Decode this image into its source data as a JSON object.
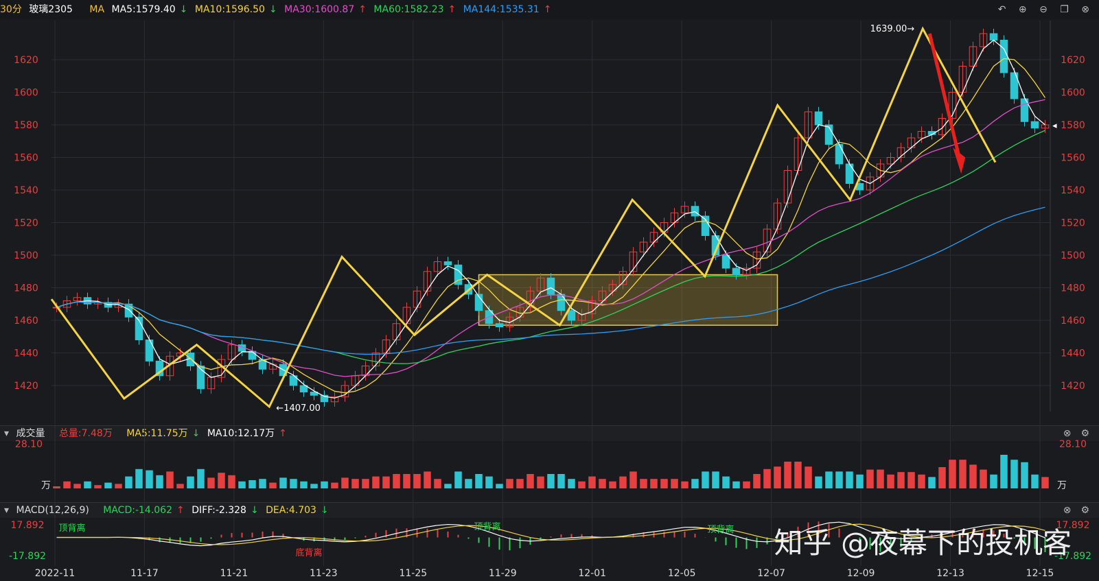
{
  "header": {
    "period": "30分",
    "symbol": "玻璃2305",
    "ma_label": "MA",
    "ma": [
      {
        "label": "MA5:1579.40",
        "arrow": "down",
        "color": "#ffffff"
      },
      {
        "label": "MA10:1596.50",
        "arrow": "down",
        "color": "#f5d442"
      },
      {
        "label": "MA30:1600.87",
        "arrow": "up",
        "color": "#e04fc9"
      },
      {
        "label": "MA60:1582.23",
        "arrow": "up",
        "color": "#2fd35a"
      },
      {
        "label": "MA144:1535.31",
        "arrow": "up",
        "color": "#2d9df5"
      }
    ],
    "icons": [
      "undo-icon",
      "zoom-in-icon",
      "zoom-out-icon",
      "window-icon",
      "close-icon"
    ]
  },
  "volume": {
    "title": "成交量",
    "total": "总量:7.48万",
    "ma5": "MA5:11.75万",
    "ma10": "MA10:12.17万",
    "axis_max": "28.10",
    "unit": "万"
  },
  "macd": {
    "title": "MACD(12,26,9)",
    "macd": "MACD:-14.062",
    "diff": "DIFF:-2.328",
    "dea": "DEA:4.703",
    "axis_top": "17.892",
    "axis_bottom": "-17.892",
    "annotations": [
      "顶背离",
      "底背离",
      "顶背离",
      "顶背离"
    ]
  },
  "watermark": "知乎 @夜幕下的投机客",
  "chart_data": {
    "type": "candlestick",
    "title": "玻璃2305",
    "y_ticks": [
      1420,
      1440,
      1460,
      1480,
      1500,
      1520,
      1540,
      1560,
      1580,
      1600,
      1620
    ],
    "ylim": [
      1404,
      1644
    ],
    "x_ticks": [
      "2022-11",
      "11-17",
      "11-21",
      "11-23",
      "11-25",
      "11-29",
      "12-01",
      "12-05",
      "12-07",
      "12-09",
      "12-13",
      "12-15"
    ],
    "price_marker": 1580,
    "annotations": {
      "high": "1639.00",
      "low": "1407.00"
    },
    "zigzag": [
      1473,
      1412,
      1445,
      1407,
      1499,
      1451,
      1488,
      1457,
      1534,
      1487,
      1592,
      1534,
      1639,
      1557
    ],
    "consolidation_box": {
      "from_value": 1488,
      "to_value": 1457
    },
    "close": [
      1468,
      1472,
      1474,
      1470,
      1471,
      1468,
      1470,
      1462,
      1448,
      1435,
      1426,
      1438,
      1440,
      1432,
      1418,
      1425,
      1436,
      1445,
      1441,
      1436,
      1430,
      1433,
      1426,
      1420,
      1416,
      1414,
      1410,
      1413,
      1420,
      1426,
      1432,
      1440,
      1448,
      1458,
      1468,
      1478,
      1490,
      1496,
      1494,
      1482,
      1476,
      1466,
      1458,
      1456,
      1462,
      1468,
      1478,
      1486,
      1476,
      1466,
      1460,
      1464,
      1472,
      1478,
      1482,
      1490,
      1502,
      1508,
      1514,
      1520,
      1526,
      1530,
      1524,
      1512,
      1500,
      1492,
      1488,
      1492,
      1502,
      1516,
      1532,
      1552,
      1572,
      1588,
      1580,
      1568,
      1556,
      1544,
      1540,
      1548,
      1556,
      1560,
      1566,
      1572,
      1576,
      1574,
      1584,
      1600,
      1616,
      1628,
      1636,
      1632,
      1612,
      1596,
      1582,
      1578,
      1580
    ],
    "volume_max": 28.1
  }
}
